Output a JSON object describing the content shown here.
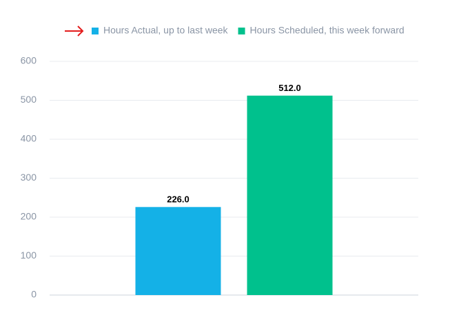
{
  "chart_data": {
    "type": "bar",
    "categories": [
      null
    ],
    "series": [
      {
        "name": "Hours Actual, up to last week",
        "color": "#14b1e7",
        "values": [
          226
        ],
        "value_labels": [
          "226.0"
        ]
      },
      {
        "name": "Hours Scheduled, this week forward",
        "color": "#00c18d",
        "values": [
          512
        ],
        "value_labels": [
          "512.0"
        ]
      }
    ],
    "ylim": [
      0,
      600
    ],
    "yticks": [
      0,
      100,
      200,
      300,
      400,
      500,
      600
    ],
    "grid": true,
    "legend": "top"
  }
}
